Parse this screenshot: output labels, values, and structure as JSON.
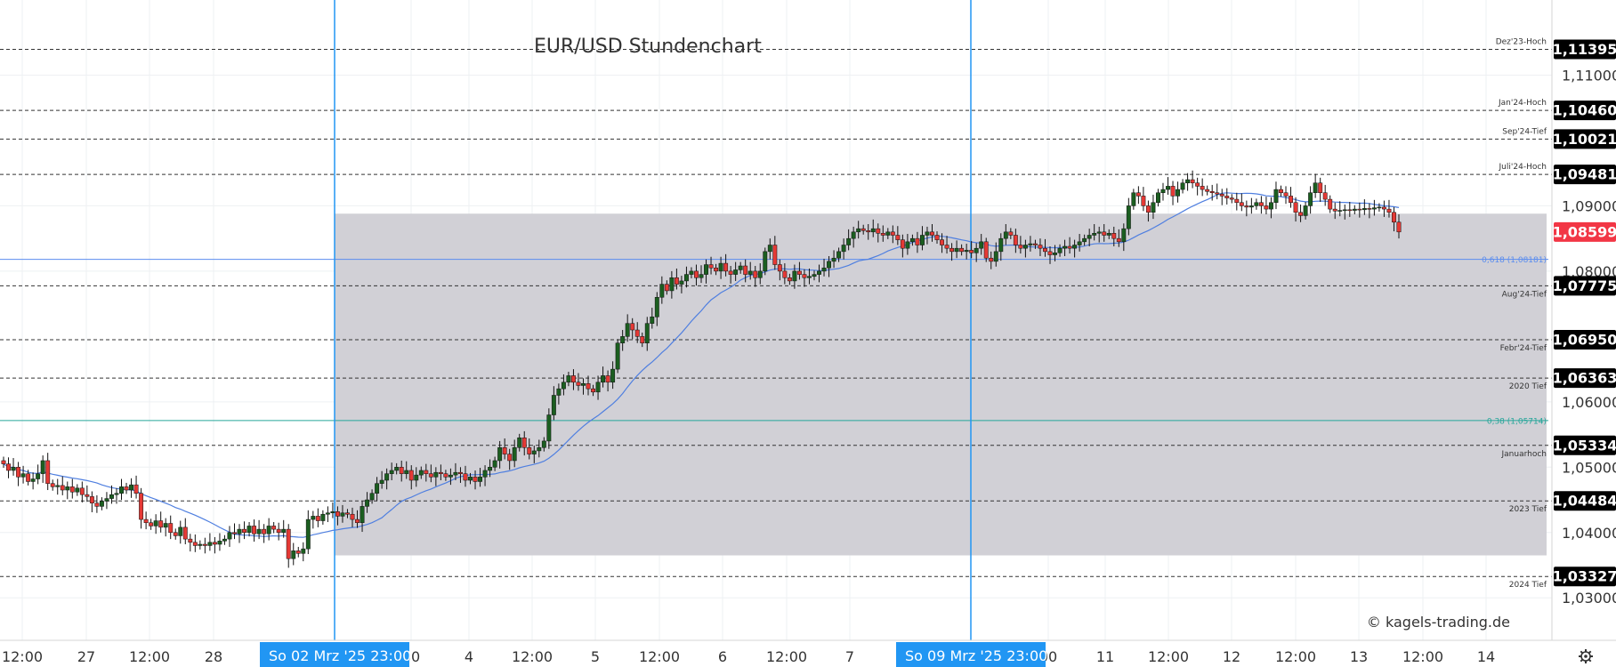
{
  "chart_data": {
    "type": "candlestick",
    "title": "EUR/USD Stundenchart",
    "watermark": "© kagels-trading.de",
    "ylim": [
      1.0235,
      1.1215
    ],
    "price_ticks": [
      {
        "value": 1.11,
        "label": "1,11000"
      },
      {
        "value": 1.09,
        "label": "1,09000"
      },
      {
        "value": 1.08,
        "label": "1,08000"
      },
      {
        "value": 1.06,
        "label": "1,06000"
      },
      {
        "value": 1.05,
        "label": "1,05000"
      },
      {
        "value": 1.04,
        "label": "1,04000"
      },
      {
        "value": 1.03,
        "label": "1,03000"
      }
    ],
    "levels": [
      {
        "name": "Dez'23-Hoch",
        "value": 1.11395,
        "label": "1,11395"
      },
      {
        "name": "Jan'24-Hoch",
        "value": 1.1046,
        "label": "1,10460"
      },
      {
        "name": "Sep'24-Tief",
        "value": 1.10021,
        "label": "1,10021"
      },
      {
        "name": "Juli'24-Hoch",
        "value": 1.09481,
        "label": "1,09481"
      },
      {
        "name": "Aug'24-Tief",
        "value": 1.07775,
        "label": "1,07775"
      },
      {
        "name": "Febr'24-Tief",
        "value": 1.0695,
        "label": "1,06950"
      },
      {
        "name": "2020 Tief",
        "value": 1.06363,
        "label": "1,06363"
      },
      {
        "name": "Januarhoch",
        "value": 1.05334,
        "label": "1,05334"
      },
      {
        "name": "2023 Tief",
        "value": 1.04484,
        "label": "1,04484"
      },
      {
        "name": "2024 Tief",
        "value": 1.03327,
        "label": "1,03327"
      }
    ],
    "fib_levels": [
      {
        "label": "0,618 (1,08181)",
        "value": 1.08181,
        "color": "#5b8def"
      },
      {
        "label": "0,38 (1,05714)",
        "value": 1.05714,
        "color": "#26a69a"
      }
    ],
    "range_zone": {
      "top": 1.0888,
      "bottom": 1.0365,
      "color": "#cfced4"
    },
    "current_price": {
      "value": 1.08599,
      "label": "1,08599",
      "color": "#f23645"
    },
    "x_labels": [
      "12:00",
      "27",
      "12:00",
      "28",
      "00",
      "4",
      "12:00",
      "5",
      "12:00",
      "6",
      "12:00",
      "7",
      "00",
      "11",
      "12:00",
      "12",
      "12:00",
      "13",
      "12:00",
      "14"
    ],
    "date_tags": [
      {
        "label": "So 02 Mrz '25   23:00",
        "color": "#2196f3"
      },
      {
        "label": "So 09 Mrz '25   23:00",
        "color": "#2196f3"
      }
    ],
    "colors": {
      "up": "#1b5e20",
      "down": "#e53935",
      "wick": "#111111",
      "ma": "#4f7fe0",
      "tag": "#000000"
    },
    "candle_closes": [
      1.0505,
      1.0495,
      1.05,
      1.0485,
      1.049,
      1.0478,
      1.0482,
      1.049,
      1.051,
      1.0475,
      1.047,
      1.0472,
      1.0465,
      1.047,
      1.0462,
      1.0468,
      1.0458,
      1.0455,
      1.0445,
      1.044,
      1.0448,
      1.0452,
      1.0458,
      1.046,
      1.047,
      1.0465,
      1.0473,
      1.046,
      1.042,
      1.0415,
      1.041,
      1.0418,
      1.0408,
      1.0414,
      1.04,
      1.0395,
      1.0408,
      1.039,
      1.0385,
      1.038,
      1.0382,
      1.038,
      1.0385,
      1.0382,
      1.0387,
      1.039,
      1.04,
      1.0398,
      1.0405,
      1.04,
      1.041,
      1.0398,
      1.0405,
      1.0398,
      1.041,
      1.0405,
      1.04,
      1.0405,
      1.036,
      1.0372,
      1.0368,
      1.0375,
      1.042,
      1.0425,
      1.0418,
      1.0428,
      1.043,
      1.0432,
      1.0425,
      1.043,
      1.0428,
      1.042,
      1.0415,
      1.044,
      1.045,
      1.046,
      1.0475,
      1.048,
      1.049,
      1.0495,
      1.05,
      1.049,
      1.0495,
      1.048,
      1.0488,
      1.0495,
      1.049,
      1.0485,
      1.0492,
      1.049,
      1.0485,
      1.0488,
      1.0492,
      1.049,
      1.048,
      1.0485,
      1.0478,
      1.0485,
      1.0495,
      1.05,
      1.051,
      1.053,
      1.052,
      1.051,
      1.053,
      1.0545,
      1.053,
      1.052,
      1.0525,
      1.053,
      1.054,
      1.058,
      1.061,
      1.062,
      1.063,
      1.064,
      1.063,
      1.0625,
      1.0628,
      1.062,
      1.0615,
      1.063,
      1.064,
      1.063,
      1.065,
      1.069,
      1.07,
      1.072,
      1.071,
      1.07,
      1.069,
      1.072,
      1.073,
      1.076,
      1.078,
      1.077,
      1.079,
      1.078,
      1.0785,
      1.0795,
      1.08,
      1.079,
      1.0795,
      1.081,
      1.0805,
      1.08,
      1.0812,
      1.08,
      1.0795,
      1.0802,
      1.0808,
      1.0795,
      1.08,
      1.079,
      1.08,
      1.083,
      1.084,
      1.081,
      1.08,
      1.079,
      1.0785,
      1.08,
      1.0795,
      1.079,
      1.0792,
      1.0795,
      1.08,
      1.0805,
      1.0815,
      1.082,
      1.083,
      1.084,
      1.085,
      1.086,
      1.0865,
      1.0862,
      1.086,
      1.0865,
      1.0858,
      1.0855,
      1.086,
      1.0855,
      1.0848,
      1.0835,
      1.0845,
      1.085,
      1.084,
      1.0855,
      1.086,
      1.0855,
      1.0848,
      1.084,
      1.0835,
      1.083,
      1.0835,
      1.083,
      1.0832,
      1.0828,
      1.0835,
      1.0845,
      1.082,
      1.0815,
      1.083,
      1.085,
      1.086,
      1.0855,
      1.084,
      1.0835,
      1.084,
      1.0842,
      1.084,
      1.0835,
      1.083,
      1.0825,
      1.0828,
      1.0835,
      1.0838,
      1.0835,
      1.084,
      1.0845,
      1.085,
      1.0855,
      1.0858,
      1.086,
      1.0855,
      1.0858,
      1.085,
      1.0845,
      1.0865,
      1.09,
      1.092,
      1.0915,
      1.09,
      1.089,
      1.0905,
      1.092,
      1.0925,
      1.093,
      1.0915,
      1.0925,
      1.0935,
      1.094,
      1.0935,
      1.093,
      1.0925,
      1.0922,
      1.092,
      1.0918,
      1.0915,
      1.0912,
      1.091,
      1.0905,
      1.09,
      1.0898,
      1.09,
      1.0905,
      1.09,
      1.0895,
      1.0905,
      1.0925,
      1.092,
      1.0915,
      1.0905,
      1.089,
      1.0885,
      1.09,
      1.092,
      1.0935,
      1.092,
      1.091,
      1.0895,
      1.0892,
      1.0893,
      1.0894,
      1.0893,
      1.0895,
      1.0894,
      1.0896,
      1.0895,
      1.0897,
      1.0898,
      1.0895,
      1.089,
      1.0875,
      1.086
    ]
  }
}
